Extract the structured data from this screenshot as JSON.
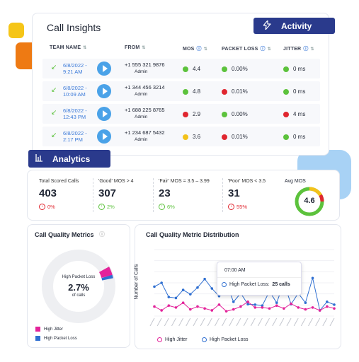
{
  "colors": {
    "accent": "#2a3a8c",
    "green": "#5cc23c",
    "red": "#e0262f",
    "yellow": "#f3c21a",
    "blue": "#2f6fd1",
    "pink": "#e3239a",
    "link": "#3b7ad9"
  },
  "insights": {
    "title": "Call Insights",
    "activity_label": "Activity",
    "columns": [
      "TEAM NAME",
      "FROM",
      "MOS",
      "PACKET LOSS",
      "JITTER"
    ],
    "rows": [
      {
        "date": "6/8/2022 -",
        "time": "9:21 AM",
        "number": "+1 555 321 9876",
        "user": "Admin",
        "mos": "4.4",
        "mos_color": "green",
        "loss": "0.00%",
        "loss_color": "green",
        "jitter": "0 ms",
        "jitter_color": "green"
      },
      {
        "date": "6/8/2022 -",
        "time": "10:09 AM",
        "number": "+1 344 456 3214",
        "user": "Admin",
        "mos": "4.8",
        "mos_color": "green",
        "loss": "0.01%",
        "loss_color": "red",
        "jitter": "0 ms",
        "jitter_color": "green"
      },
      {
        "date": "6/8/2022 -",
        "time": "12:43 PM",
        "number": "+1 688 225 8765",
        "user": "Admin",
        "mos": "2.9",
        "mos_color": "red",
        "loss": "0.00%",
        "loss_color": "green",
        "jitter": "4 ms",
        "jitter_color": "red"
      },
      {
        "date": "6/8/2022 -",
        "time": "2:17 PM",
        "number": "+1 234 687 5432",
        "user": "Admin",
        "mos": "3.6",
        "mos_color": "yellow",
        "loss": "0.01%",
        "loss_color": "red",
        "jitter": "0 ms",
        "jitter_color": "green"
      }
    ]
  },
  "analytics": {
    "label": "Analytics",
    "stats": [
      {
        "label": "Total Scored Calls",
        "value": "403",
        "change": "0%",
        "trend": "down"
      },
      {
        "label": "'Good' MOS > 4",
        "value": "307",
        "change": "2%",
        "trend": "up"
      },
      {
        "label": "'Fair' MOS = 3.5 – 3.99",
        "value": "23",
        "change": "6%",
        "trend": "up"
      },
      {
        "label": "'Poor' MOS < 3.5",
        "value": "31",
        "change": "55%",
        "trend": "down"
      }
    ],
    "avg_mos_label": "Avg MOS",
    "avg_mos_value": "4.6"
  },
  "quality": {
    "title": "Call Quality Metrics",
    "center_label": "High Packet Loss",
    "center_value": "2.7%",
    "center_sub": "of calls",
    "legend": [
      "High Jitter",
      "High Packet Loss"
    ]
  },
  "distribution": {
    "title": "Call Quality Metric Distribution",
    "ylabel": "Number of Calls",
    "tooltip_time": "07:00 AM",
    "tooltip_label": "High Packet Loss:",
    "tooltip_value": "25 calls",
    "legend": [
      "High Jitter",
      "High Packet Loss"
    ]
  },
  "chart_data": {
    "type": "line",
    "ylabel": "Number of Calls",
    "ylim": [
      0,
      140
    ],
    "yticks": [
      "",
      "",
      "",
      "",
      "",
      "",
      ""
    ],
    "series": [
      {
        "name": "High Packet Loss",
        "color": "#2f6fd1",
        "values": [
          62,
          70,
          40,
          38,
          55,
          46,
          60,
          78,
          58,
          42,
          68,
          30,
          48,
          25,
          24,
          22,
          52,
          28,
          70,
          25,
          48,
          28,
          80,
          12,
          30,
          24
        ]
      },
      {
        "name": "High Jitter",
        "color": "#e3239a",
        "values": [
          20,
          12,
          22,
          18,
          28,
          14,
          20,
          16,
          12,
          24,
          10,
          14,
          20,
          30,
          18,
          18,
          16,
          22,
          16,
          26,
          18,
          14,
          18,
          12,
          20,
          16
        ]
      }
    ]
  }
}
